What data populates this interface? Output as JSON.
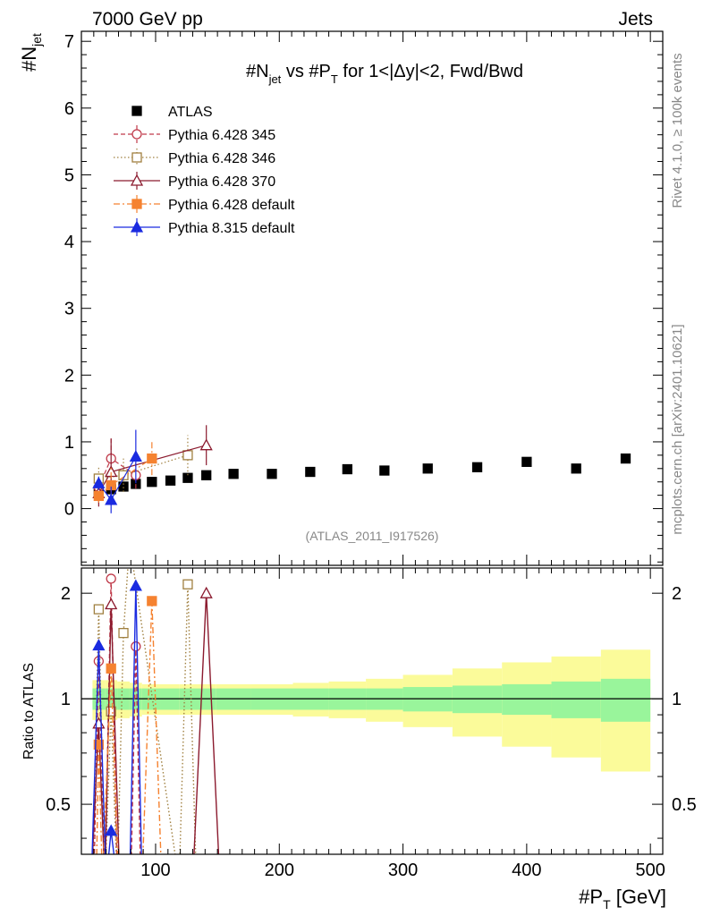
{
  "header": {
    "left": "7000 GeV pp",
    "right": "Jets"
  },
  "side": {
    "rivet": "Rivet 4.1.0, ≥ 100k events",
    "mcplots": "mcplots.cern.ch [arXiv:2401.10621]"
  },
  "watermark": "(ATLAS_2011_I917526)",
  "chart_data": [
    {
      "type": "scatter",
      "panel": "main",
      "title": "#N̅jet vs #P̅T for 1<|Δy|<2, Fwd/Bwd",
      "title_parts": {
        "p1": "#N",
        "sub1": "jet",
        "p2": " vs #P",
        "sub2": "T",
        "p3": " for 1<|Δy|<2, Fwd/Bwd"
      },
      "ylabel": "#N̅jet",
      "ylabel_parts": {
        "main": "#N",
        "sub": "jet"
      },
      "xlim": [
        40,
        510
      ],
      "ylim": [
        -0.85,
        7.15
      ],
      "yticks": [
        "0",
        "1",
        "2",
        "3",
        "4",
        "5",
        "6",
        "7"
      ],
      "series": [
        {
          "name": "ATLAS",
          "style": "data",
          "color": "#000000",
          "marker": "filled-square",
          "x": [
            54,
            64,
            74,
            84,
            97,
            112,
            126,
            141,
            163,
            194,
            225,
            255,
            285,
            320,
            360,
            400,
            440,
            480
          ],
          "y": [
            0.27,
            0.29,
            0.33,
            0.37,
            0.4,
            0.42,
            0.46,
            0.5,
            0.52,
            0.52,
            0.55,
            0.59,
            0.57,
            0.6,
            0.62,
            0.7,
            0.6,
            0.75
          ],
          "yerr": [
            0.02,
            0.02,
            0.02,
            0.02,
            0.02,
            0.02,
            0.02,
            0.02,
            0.02,
            0.02,
            0.02,
            0.02,
            0.02,
            0.02,
            0.02,
            0.02,
            0.02,
            0.02
          ]
        },
        {
          "name": "Pythia 6.428 345",
          "style": "dashed",
          "color": "#c03a4a",
          "marker": "open-circle",
          "x": [
            54,
            64,
            84
          ],
          "y": [
            0.32,
            0.75,
            0.5
          ],
          "yerr": [
            0.2,
            0.3,
            0.2
          ]
        },
        {
          "name": "Pythia 6.428 346",
          "style": "dotted",
          "color": "#a08040",
          "marker": "open-square",
          "x": [
            54,
            74,
            126
          ],
          "y": [
            0.45,
            0.5,
            0.8
          ],
          "yerr": [
            0.18,
            0.25,
            0.3
          ]
        },
        {
          "name": "Pythia 6.428 370",
          "style": "solid",
          "color": "#8b1a2e",
          "marker": "open-triangle",
          "x": [
            54,
            64,
            141
          ],
          "y": [
            0.23,
            0.55,
            0.95
          ],
          "yerr": [
            0.2,
            0.5,
            0.3
          ]
        },
        {
          "name": "Pythia 6.428 default",
          "style": "dashdot",
          "color": "#f58230",
          "marker": "filled-square",
          "x": [
            54,
            64,
            97
          ],
          "y": [
            0.19,
            0.35,
            0.75
          ],
          "yerr": [
            0.1,
            0.3,
            0.25
          ]
        },
        {
          "name": "Pythia 8.315 default",
          "style": "solid",
          "color": "#1a2be0",
          "marker": "filled-triangle",
          "x": [
            54,
            64,
            84
          ],
          "y": [
            0.38,
            0.13,
            0.78
          ],
          "yerr": [
            0.1,
            0.2,
            0.4
          ]
        }
      ]
    },
    {
      "type": "line",
      "panel": "ratio",
      "ylabel": "Ratio to ATLAS",
      "xlabel": "#P̅T [GeV]",
      "xlabel_parts": {
        "main": "#P",
        "sub": "T",
        "unit": " [GeV]"
      },
      "xlim": [
        40,
        510
      ],
      "ylim": [
        0.36,
        2.36
      ],
      "xticks": [
        "100",
        "200",
        "300",
        "400",
        "500"
      ],
      "yticks": [
        "0.5",
        "1",
        "2"
      ],
      "reference_line": 1.0,
      "bands": {
        "bin_edges": [
          49,
          59,
          69,
          79,
          89,
          104,
          119,
          134,
          149,
          177,
          211,
          240,
          270,
          300,
          340,
          380,
          420,
          460,
          500
        ],
        "inner": [
          0.07,
          0.07,
          0.07,
          0.07,
          0.07,
          0.07,
          0.07,
          0.07,
          0.07,
          0.07,
          0.07,
          0.07,
          0.07,
          0.08,
          0.09,
          0.1,
          0.12,
          0.14
        ],
        "outer": [
          0.13,
          0.13,
          0.12,
          0.11,
          0.1,
          0.1,
          0.1,
          0.1,
          0.1,
          0.1,
          0.11,
          0.12,
          0.14,
          0.17,
          0.22,
          0.27,
          0.32,
          0.38
        ],
        "inner_color": "#99f59b",
        "outer_color": "#fbfb9a"
      },
      "series": [
        {
          "name": "Pythia 6.428 345",
          "color": "#c03a4a",
          "style": "dashed",
          "marker": "open-circle",
          "x": [
            50,
            54,
            59,
            64,
            69,
            80,
            84,
            88
          ],
          "y": [
            0.3,
            1.28,
            0.3,
            2.2,
            0.3,
            0.3,
            1.41,
            0.3
          ]
        },
        {
          "name": "Pythia 6.428 346",
          "color": "#a08040",
          "style": "dotted",
          "marker": "open-square",
          "x": [
            49,
            54,
            59,
            64,
            69,
            74,
            79,
            119,
            126,
            133
          ],
          "y": [
            0.3,
            1.8,
            0.3,
            0.92,
            0.3,
            1.54,
            2.8,
            0.3,
            2.12,
            0.3
          ]
        },
        {
          "name": "Pythia 6.428 370",
          "color": "#8b1a2e",
          "style": "solid",
          "marker": "open-triangle",
          "x": [
            48,
            54,
            59,
            64,
            71,
            130,
            141,
            152
          ],
          "y": [
            0.3,
            0.85,
            0.3,
            1.86,
            0.3,
            0.3,
            2.0,
            0.3
          ]
        },
        {
          "name": "Pythia 6.428 default",
          "color": "#f58230",
          "style": "dashdot",
          "marker": "filled-square",
          "x": [
            52,
            54,
            57,
            64,
            70,
            89,
            97,
            105
          ],
          "y": [
            0.3,
            0.74,
            0.3,
            1.22,
            0.3,
            0.3,
            1.9,
            0.3
          ]
        },
        {
          "name": "Pythia 8.315 default",
          "color": "#1a2be0",
          "style": "solid",
          "marker": "filled-triangle",
          "x": [
            48,
            54,
            60,
            64,
            69,
            79,
            84,
            89
          ],
          "y": [
            0.3,
            1.42,
            0.3,
            0.42,
            0.3,
            0.3,
            2.1,
            0.3
          ]
        }
      ]
    }
  ]
}
